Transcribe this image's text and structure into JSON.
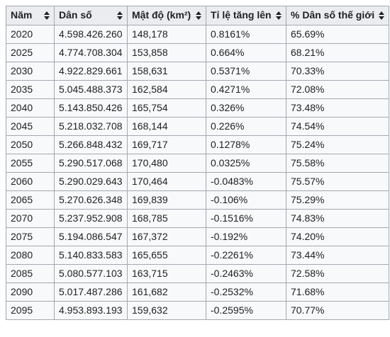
{
  "table": {
    "headers": [
      "Năm",
      "Dân số",
      "Mật độ (km²)",
      "Tỉ lệ tăng lên",
      "% Dân số thế giới"
    ],
    "rows": [
      [
        "2020",
        "4.598.426.260",
        "148,178",
        "0.8161%",
        "65.69%"
      ],
      [
        "2025",
        "4.774.708.304",
        "153,858",
        "0.664%",
        "68.21%"
      ],
      [
        "2030",
        "4.922.829.661",
        "158,631",
        "0.5371%",
        "70.33%"
      ],
      [
        "2035",
        "5.045.488.373",
        "162,584",
        "0.4271%",
        "72.08%"
      ],
      [
        "2040",
        "5.143.850.426",
        "165,754",
        "0.326%",
        "73.48%"
      ],
      [
        "2045",
        "5.218.032.708",
        "168,144",
        "0.226%",
        "74.54%"
      ],
      [
        "2050",
        "5.266.848.432",
        "169,717",
        "0.1278%",
        "75.24%"
      ],
      [
        "2055",
        "5.290.517.068",
        "170,480",
        "0.0325%",
        "75.58%"
      ],
      [
        "2060",
        "5.290.029.643",
        "170,464",
        "-0.0483%",
        "75.57%"
      ],
      [
        "2065",
        "5.270.626.348",
        "169,839",
        "-0.106%",
        "75.29%"
      ],
      [
        "2070",
        "5.237.952.908",
        "168,785",
        "-0.1516%",
        "74.83%"
      ],
      [
        "2075",
        "5.194.086.547",
        "167,372",
        "-0.192%",
        "74.20%"
      ],
      [
        "2080",
        "5.140.833.583",
        "165,655",
        "-0.2261%",
        "73.44%"
      ],
      [
        "2085",
        "5.080.577.103",
        "163,715",
        "-0.2463%",
        "72.58%"
      ],
      [
        "2090",
        "5.017.487.286",
        "161,682",
        "-0.2532%",
        "71.68%"
      ],
      [
        "2095",
        "4.953.893.193",
        "159,632",
        "-0.2595%",
        "70.77%"
      ]
    ],
    "sort_icon": "sort-updown-icon"
  }
}
